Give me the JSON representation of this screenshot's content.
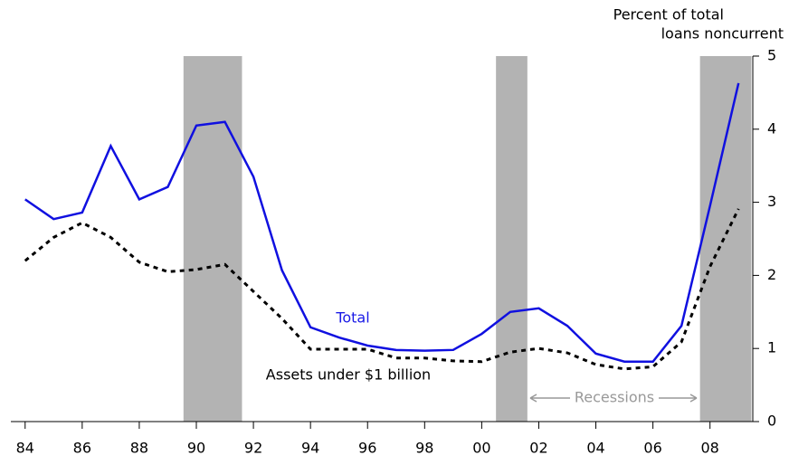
{
  "chart_data": {
    "type": "line",
    "ylabel": [
      "Percent of total",
      "loans noncurrent"
    ],
    "x": [
      1984,
      1985,
      1986,
      1987,
      1988,
      1989,
      1990,
      1991,
      1992,
      1993,
      1994,
      1995,
      1996,
      1997,
      1998,
      1999,
      2000,
      2001,
      2002,
      2003,
      2004,
      2005,
      2006,
      2007,
      2008,
      2009
    ],
    "series": [
      {
        "name": "Total",
        "color": "#1010e0",
        "dash": false,
        "values": [
          3.04,
          2.77,
          2.86,
          3.77,
          3.04,
          3.21,
          4.05,
          4.1,
          3.35,
          2.07,
          1.29,
          1.15,
          1.04,
          0.98,
          0.97,
          0.98,
          1.2,
          1.5,
          1.55,
          1.31,
          0.93,
          0.82,
          0.82,
          1.31,
          2.95,
          4.63
        ]
      },
      {
        "name": "Assets under $1 billion",
        "color": "#000000",
        "dash": true,
        "values": [
          2.2,
          2.52,
          2.72,
          2.52,
          2.18,
          2.05,
          2.08,
          2.15,
          1.78,
          1.41,
          0.99,
          0.99,
          0.99,
          0.87,
          0.87,
          0.83,
          0.82,
          0.95,
          1.0,
          0.94,
          0.78,
          0.72,
          0.75,
          1.09,
          2.12,
          2.91
        ]
      }
    ],
    "recession_label": "Recessions",
    "recessions": [
      [
        1989.55,
        1991.6
      ],
      [
        2000.5,
        2001.6
      ],
      [
        2007.65,
        2009.45
      ]
    ],
    "recession_color": "#b3b3b3",
    "xlim": [
      1983.5,
      2009.5
    ],
    "xticks": [
      {
        "value": 1984,
        "label": "84"
      },
      {
        "value": 1986,
        "label": "86"
      },
      {
        "value": 1988,
        "label": "88"
      },
      {
        "value": 1990,
        "label": "90"
      },
      {
        "value": 1992,
        "label": "92"
      },
      {
        "value": 1994,
        "label": "94"
      },
      {
        "value": 1996,
        "label": "96"
      },
      {
        "value": 1998,
        "label": "98"
      },
      {
        "value": 2000,
        "label": "00"
      },
      {
        "value": 2002,
        "label": "02"
      },
      {
        "value": 2004,
        "label": "04"
      },
      {
        "value": 2006,
        "label": "06"
      },
      {
        "value": 2008,
        "label": "08"
      }
    ],
    "ylim": [
      0,
      5
    ],
    "yticks": [
      0,
      1,
      2,
      3,
      4,
      5
    ]
  }
}
